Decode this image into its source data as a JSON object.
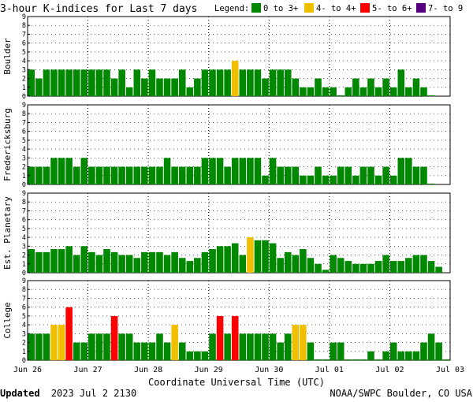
{
  "chart_data": {
    "type": "bar",
    "title": "3-hour K-indices for Last 7 days",
    "legend": {
      "label": "Legend:",
      "placement": "top-right",
      "items": [
        {
          "name": "0 to 3+",
          "color": "#008800"
        },
        {
          "name": "4- to 4+",
          "color": "#f0c000"
        },
        {
          "name": "5- to 6+",
          "color": "#ff0000"
        },
        {
          "name": "7- to 9",
          "color": "#55007f"
        }
      ]
    },
    "colors": {
      "quiet": "#008800",
      "active": "#f0c000",
      "storm": "#ff0000",
      "severe": "#55007f"
    },
    "ylim": [
      0,
      9
    ],
    "yticks": [
      "0",
      "1",
      "2",
      "3",
      "4",
      "5",
      "6",
      "7",
      "8",
      "9"
    ],
    "xlabel": "Coordinate Universal Time (UTC)",
    "x_tick_labels": [
      "Jun 26",
      "Jun 27",
      "Jun 28",
      "Jun 29",
      "Jun 30",
      "Jul 01",
      "Jul 02",
      "Jul 03"
    ],
    "grid": true,
    "slots_per_day": 8,
    "series": [
      {
        "name": "Boulder",
        "values": [
          3,
          2,
          3,
          3,
          3,
          3,
          3,
          3,
          3,
          3,
          3,
          2,
          3,
          1,
          3,
          2,
          3,
          2,
          2,
          2,
          3,
          1,
          2,
          3,
          3,
          3,
          3,
          4,
          3,
          3,
          3,
          2,
          3,
          3,
          3,
          2,
          1,
          1,
          2,
          1,
          1,
          0.1,
          1,
          2,
          1,
          2,
          1,
          2,
          1,
          3,
          1,
          2,
          1,
          0.1
        ]
      },
      {
        "name": "Fredericksburg",
        "values": [
          2,
          2,
          2,
          3,
          3,
          3,
          2,
          3,
          2,
          2,
          2,
          2,
          2,
          2,
          2,
          2,
          2,
          2,
          3,
          2,
          2,
          2,
          2,
          3,
          3,
          3,
          2,
          3,
          3,
          3,
          3,
          1,
          3,
          2,
          2,
          2,
          1,
          1,
          2,
          1,
          1,
          2,
          2,
          1,
          2,
          2,
          1,
          2,
          1,
          3,
          3,
          2,
          2,
          0.1
        ]
      },
      {
        "name": "Est. Planetary",
        "values": [
          2.67,
          2.33,
          2.33,
          2.67,
          2.67,
          3,
          2,
          3,
          2.33,
          2,
          2.67,
          2.33,
          2,
          2,
          1.67,
          2.33,
          2.33,
          2.33,
          2,
          2.33,
          1.67,
          1.33,
          1.67,
          2.33,
          2.67,
          3,
          3,
          3.33,
          2,
          4,
          3.67,
          3.67,
          3.33,
          1.67,
          2.33,
          2,
          2.67,
          1.67,
          1,
          0.33,
          2,
          1.67,
          1.33,
          1,
          1,
          1,
          1.33,
          2,
          1.33,
          1.33,
          1.67,
          2,
          2,
          1.33,
          0.67
        ]
      },
      {
        "name": "College",
        "values": [
          3,
          3,
          3,
          4,
          4,
          6,
          2,
          2,
          3,
          3,
          3,
          5,
          3,
          3,
          2,
          2,
          2,
          3,
          2,
          4,
          2,
          1,
          1,
          1,
          3,
          5,
          3,
          5,
          3,
          3,
          3,
          3,
          3,
          2,
          3,
          4,
          4,
          2,
          0.1,
          0.1,
          2,
          2,
          0.1,
          0.1,
          0.1,
          1,
          0.1,
          1,
          2,
          1,
          1,
          1,
          2,
          3,
          2,
          0.1
        ]
      }
    ]
  },
  "footer": {
    "updated_label": "Updated",
    "updated_time": "2023 Jul  2 2130",
    "source": "NOAA/SWPC Boulder, CO USA"
  }
}
